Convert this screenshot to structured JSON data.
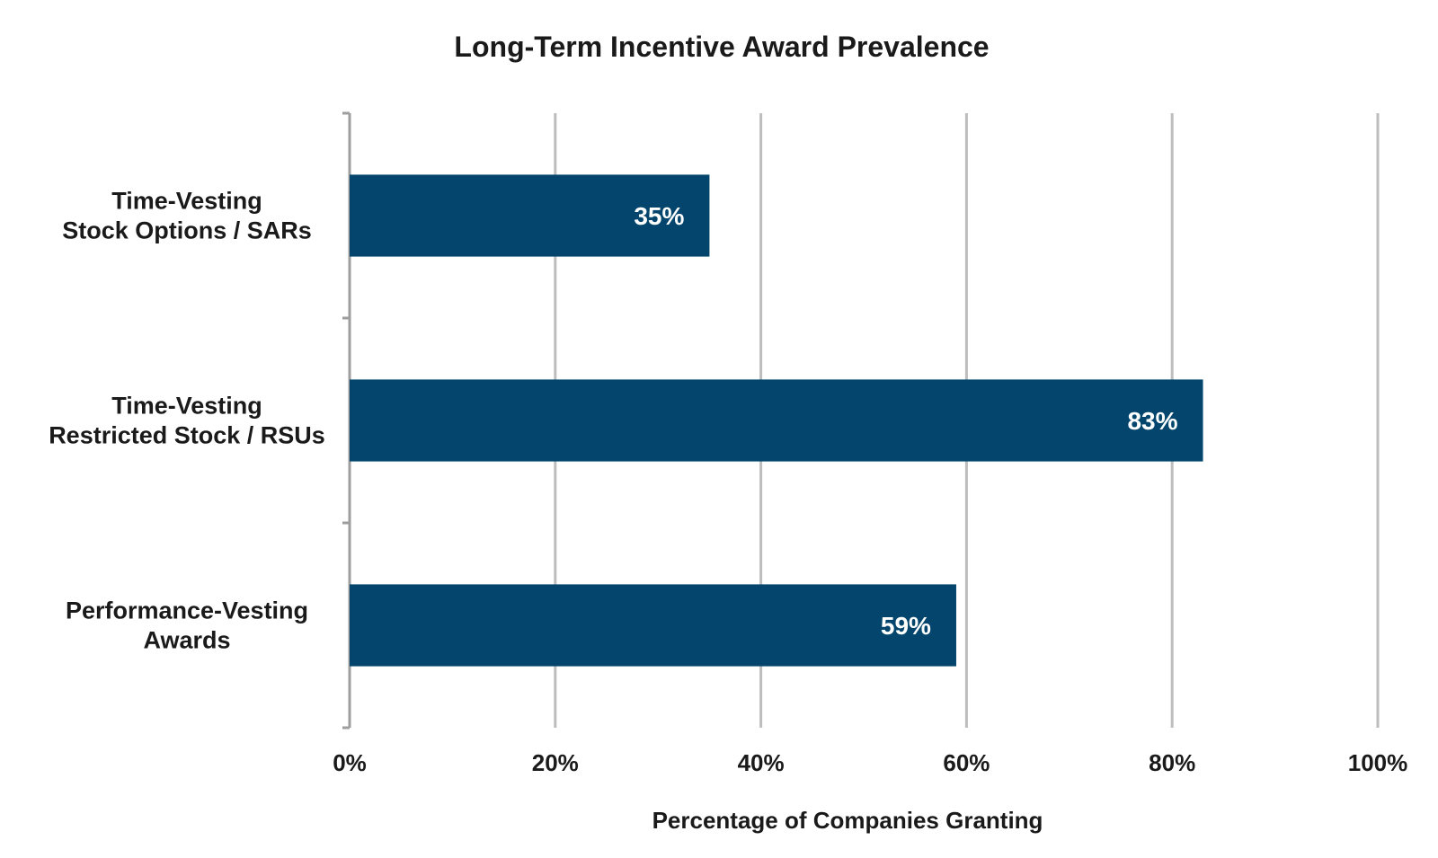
{
  "chart_data": {
    "type": "bar",
    "orientation": "horizontal",
    "title": "Long-Term Incentive Award Prevalence",
    "xlabel": "Percentage of Companies Granting",
    "ylabel": "",
    "categories": [
      [
        "Time-Vesting",
        "Stock Options / SARs"
      ],
      [
        "Time-Vesting",
        "Restricted Stock / RSUs"
      ],
      [
        "Performance-Vesting",
        "Awards"
      ]
    ],
    "values": [
      35,
      83,
      59
    ],
    "data_labels": [
      "35%",
      "83%",
      "59%"
    ],
    "xlim": [
      0,
      100
    ],
    "xticks": [
      0,
      20,
      40,
      60,
      80,
      100
    ],
    "xtick_labels": [
      "0%",
      "20%",
      "40%",
      "60%",
      "80%",
      "100%"
    ],
    "grid": "vertical",
    "legend": "none"
  },
  "colors": {
    "bar": "#03456c",
    "grid": "#bdbdbd",
    "axis": "#9e9e9e",
    "label_inside": "#ffffff"
  }
}
